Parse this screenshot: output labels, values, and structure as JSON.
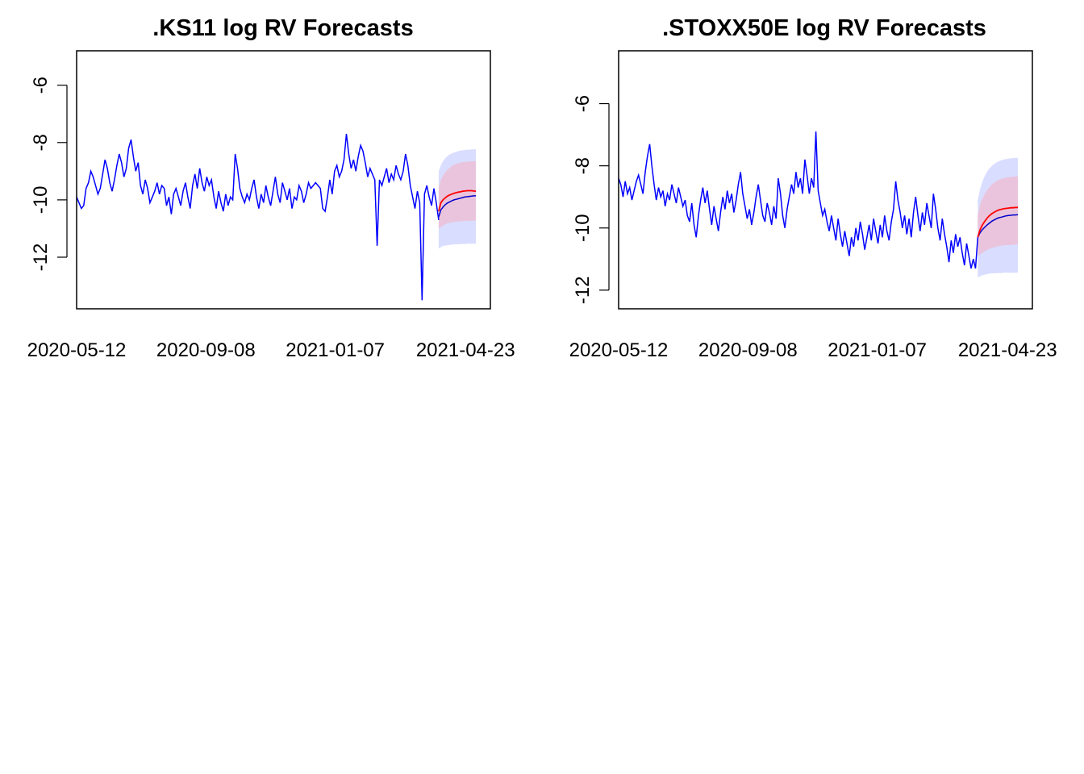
{
  "chart_data": [
    {
      "type": "line",
      "title": ".KS11 log RV Forecasts",
      "xlabel": "",
      "ylabel": "",
      "x_tick_labels": [
        "2020-05-12",
        "2020-09-08",
        "2021-01-07",
        "2021-04-23"
      ],
      "y_ticks": [
        -6,
        -8,
        -10,
        -12
      ],
      "y_tick_labels": [
        "-6",
        "-8",
        "-10",
        "-12"
      ],
      "xlim": [
        "2020-05-12",
        "2021-04-23"
      ],
      "ylim": [
        -13.8,
        -4.8
      ],
      "grid": false,
      "colors": {
        "history": "#0000ff",
        "forecast_mean": "#ff0000",
        "forecast_median": "#0000cc",
        "band_outer": "#d9ddff",
        "band_inner": "#eac4dc"
      },
      "history": [
        -9.9,
        -10.1,
        -10.3,
        -10.2,
        -9.6,
        -9.4,
        -9.0,
        -9.2,
        -9.5,
        -9.8,
        -9.6,
        -9.1,
        -8.6,
        -8.9,
        -9.4,
        -9.7,
        -9.3,
        -8.8,
        -8.4,
        -8.7,
        -9.2,
        -8.9,
        -8.2,
        -7.9,
        -8.5,
        -9.0,
        -8.7,
        -9.5,
        -9.8,
        -9.3,
        -9.6,
        -10.1,
        -9.9,
        -9.7,
        -9.4,
        -9.8,
        -9.5,
        -9.6,
        -10.2,
        -9.9,
        -10.5,
        -9.8,
        -9.6,
        -9.9,
        -10.2,
        -9.7,
        -9.4,
        -9.9,
        -10.3,
        -9.5,
        -9.1,
        -9.6,
        -8.9,
        -9.4,
        -9.7,
        -9.2,
        -9.5,
        -9.3,
        -9.9,
        -10.3,
        -9.7,
        -10.1,
        -10.4,
        -9.8,
        -10.2,
        -9.9,
        -10.0,
        -8.4,
        -8.9,
        -9.6,
        -9.9,
        -10.1,
        -9.8,
        -10.0,
        -9.6,
        -9.3,
        -9.9,
        -10.3,
        -9.8,
        -10.1,
        -9.5,
        -9.9,
        -10.2,
        -9.7,
        -9.2,
        -9.8,
        -10.1,
        -9.4,
        -9.7,
        -10.0,
        -9.6,
        -10.3,
        -9.9,
        -10.0,
        -9.5,
        -9.7,
        -10.1,
        -9.8,
        -9.4,
        -9.6,
        -9.5,
        -9.4,
        -9.5,
        -9.6,
        -10.3,
        -10.4,
        -9.9,
        -9.3,
        -9.8,
        -9.0,
        -8.8,
        -9.2,
        -9.0,
        -8.6,
        -7.7,
        -8.4,
        -8.9,
        -8.6,
        -9.0,
        -8.5,
        -8.1,
        -8.3,
        -8.7,
        -9.2,
        -8.9,
        -9.1,
        -9.3,
        -11.6,
        -9.3,
        -9.5,
        -9.2,
        -8.9,
        -9.4,
        -9.1,
        -9.3,
        -8.8,
        -9.1,
        -9.3,
        -9.0,
        -8.4,
        -8.8,
        -9.5,
        -9.9,
        -10.3,
        -9.7,
        -10.1,
        -13.5,
        -9.8,
        -9.5,
        -9.9,
        -10.2,
        -9.6,
        -10.1,
        -10.7
      ],
      "forecast_mean": [
        -10.4,
        -10.1,
        -10.0,
        -9.93,
        -9.87,
        -9.83,
        -9.8,
        -9.77,
        -9.75,
        -9.73,
        -9.72,
        -9.7,
        -9.69,
        -9.68,
        -9.68,
        -9.68,
        -9.69,
        -9.7
      ],
      "forecast_median": [
        -10.6,
        -10.35,
        -10.25,
        -10.17,
        -10.11,
        -10.07,
        -10.03,
        -10.0,
        -9.98,
        -9.96,
        -9.94,
        -9.92,
        -9.9,
        -9.89,
        -9.88,
        -9.87,
        -9.86,
        -9.86
      ],
      "band_inner_upper": [
        -9.6,
        -9.3,
        -9.15,
        -9.05,
        -8.95,
        -8.88,
        -8.82,
        -8.78,
        -8.75,
        -8.72,
        -8.7,
        -8.69,
        -8.68,
        -8.67,
        -8.66,
        -8.66,
        -8.65,
        -8.65
      ],
      "band_inner_lower": [
        -11.0,
        -10.95,
        -10.9,
        -10.85,
        -10.82,
        -10.8,
        -10.78,
        -10.77,
        -10.76,
        -10.75,
        -10.75,
        -10.74,
        -10.74,
        -10.73,
        -10.73,
        -10.73,
        -10.72,
        -10.72
      ],
      "band_outer_upper": [
        -9.0,
        -8.8,
        -8.65,
        -8.55,
        -8.48,
        -8.42,
        -8.38,
        -8.35,
        -8.32,
        -8.3,
        -8.28,
        -8.27,
        -8.26,
        -8.25,
        -8.25,
        -8.24,
        -8.24,
        -8.23
      ],
      "band_outer_lower": [
        -11.7,
        -11.65,
        -11.6,
        -11.6,
        -11.58,
        -11.57,
        -11.56,
        -11.55,
        -11.55,
        -11.55,
        -11.54,
        -11.54,
        -11.54,
        -11.53,
        -11.53,
        -11.53,
        -11.53,
        -11.53
      ]
    },
    {
      "type": "line",
      "title": ".STOXX50E log RV Forecasts",
      "xlabel": "",
      "ylabel": "",
      "x_tick_labels": [
        "2020-05-12",
        "2020-09-08",
        "2021-01-07",
        "2021-04-23"
      ],
      "y_ticks": [
        -6,
        -8,
        -10,
        -12
      ],
      "y_tick_labels": [
        "-6",
        "-8",
        "-10",
        "-12"
      ],
      "xlim": [
        "2020-05-12",
        "2021-04-23"
      ],
      "ylim": [
        -12.6,
        -4.3
      ],
      "grid": false,
      "colors": {
        "history": "#0000ff",
        "forecast_mean": "#ff0000",
        "forecast_median": "#0000cc",
        "band_outer": "#d9ddff",
        "band_inner": "#eac4dc"
      },
      "history": [
        -8.4,
        -8.6,
        -9.0,
        -8.5,
        -8.9,
        -8.7,
        -9.1,
        -8.8,
        -8.5,
        -8.3,
        -8.6,
        -8.9,
        -8.2,
        -7.7,
        -7.3,
        -8.0,
        -8.6,
        -9.1,
        -8.7,
        -9.0,
        -8.8,
        -9.3,
        -8.9,
        -9.1,
        -8.6,
        -8.9,
        -9.2,
        -8.7,
        -9.0,
        -9.3,
        -9.1,
        -9.6,
        -9.8,
        -9.2,
        -9.9,
        -10.3,
        -9.6,
        -9.1,
        -8.7,
        -9.2,
        -8.8,
        -9.4,
        -9.9,
        -9.3,
        -9.7,
        -10.1,
        -9.5,
        -9.0,
        -9.4,
        -8.8,
        -9.2,
        -8.9,
        -9.5,
        -9.1,
        -8.6,
        -8.2,
        -8.9,
        -9.3,
        -9.7,
        -9.4,
        -9.9,
        -9.5,
        -9.0,
        -8.6,
        -9.1,
        -9.6,
        -9.8,
        -9.2,
        -9.5,
        -9.9,
        -9.3,
        -9.7,
        -8.4,
        -8.9,
        -9.6,
        -10.0,
        -9.4,
        -9.0,
        -8.6,
        -8.9,
        -8.2,
        -8.7,
        -8.4,
        -8.9,
        -7.8,
        -8.3,
        -8.9,
        -8.4,
        -8.7,
        -6.9,
        -8.8,
        -9.2,
        -9.6,
        -9.4,
        -9.8,
        -10.1,
        -9.6,
        -10.0,
        -10.4,
        -9.7,
        -10.2,
        -10.6,
        -10.1,
        -10.5,
        -10.9,
        -10.3,
        -10.6,
        -10.0,
        -10.4,
        -9.8,
        -10.2,
        -10.7,
        -10.3,
        -9.9,
        -10.4,
        -9.7,
        -10.1,
        -10.5,
        -9.9,
        -10.3,
        -9.6,
        -10.1,
        -10.4,
        -9.8,
        -9.4,
        -8.5,
        -9.1,
        -9.5,
        -10.0,
        -9.6,
        -10.2,
        -9.7,
        -10.3,
        -9.5,
        -9.0,
        -9.6,
        -10.1,
        -9.5,
        -9.9,
        -9.2,
        -9.6,
        -10.0,
        -8.9,
        -9.4,
        -10.0,
        -10.4,
        -9.7,
        -10.2,
        -10.6,
        -11.1,
        -10.4,
        -10.8,
        -10.2,
        -10.6,
        -10.3,
        -10.8,
        -11.2,
        -10.5,
        -10.9,
        -11.3,
        -11.0,
        -11.3,
        -10.3
      ],
      "forecast_mean": [
        -10.3,
        -10.05,
        -9.9,
        -9.78,
        -9.68,
        -9.6,
        -9.54,
        -9.49,
        -9.45,
        -9.42,
        -9.4,
        -9.38,
        -9.37,
        -9.36,
        -9.35,
        -9.35,
        -9.34,
        -9.34
      ],
      "forecast_median": [
        -10.3,
        -10.15,
        -10.05,
        -9.97,
        -9.9,
        -9.84,
        -9.78,
        -9.74,
        -9.7,
        -9.67,
        -9.65,
        -9.63,
        -9.61,
        -9.6,
        -9.59,
        -9.58,
        -9.58,
        -9.57
      ],
      "band_inner_upper": [
        -9.6,
        -9.25,
        -9.05,
        -8.9,
        -8.78,
        -8.68,
        -8.6,
        -8.54,
        -8.49,
        -8.45,
        -8.42,
        -8.4,
        -8.38,
        -8.37,
        -8.36,
        -8.35,
        -8.35,
        -8.34
      ],
      "band_inner_lower": [
        -10.9,
        -10.85,
        -10.8,
        -10.75,
        -10.7,
        -10.67,
        -10.64,
        -10.62,
        -10.6,
        -10.58,
        -10.57,
        -10.56,
        -10.55,
        -10.55,
        -10.54,
        -10.54,
        -10.53,
        -10.53
      ],
      "band_outer_upper": [
        -9.1,
        -8.75,
        -8.5,
        -8.32,
        -8.18,
        -8.08,
        -8.0,
        -7.94,
        -7.89,
        -7.85,
        -7.82,
        -7.8,
        -7.78,
        -7.77,
        -7.76,
        -7.75,
        -7.75,
        -7.74
      ],
      "band_outer_lower": [
        -11.6,
        -11.55,
        -11.52,
        -11.5,
        -11.48,
        -11.47,
        -11.46,
        -11.46,
        -11.45,
        -11.45,
        -11.45,
        -11.44,
        -11.44,
        -11.44,
        -11.44,
        -11.44,
        -11.44,
        -11.44
      ]
    }
  ]
}
